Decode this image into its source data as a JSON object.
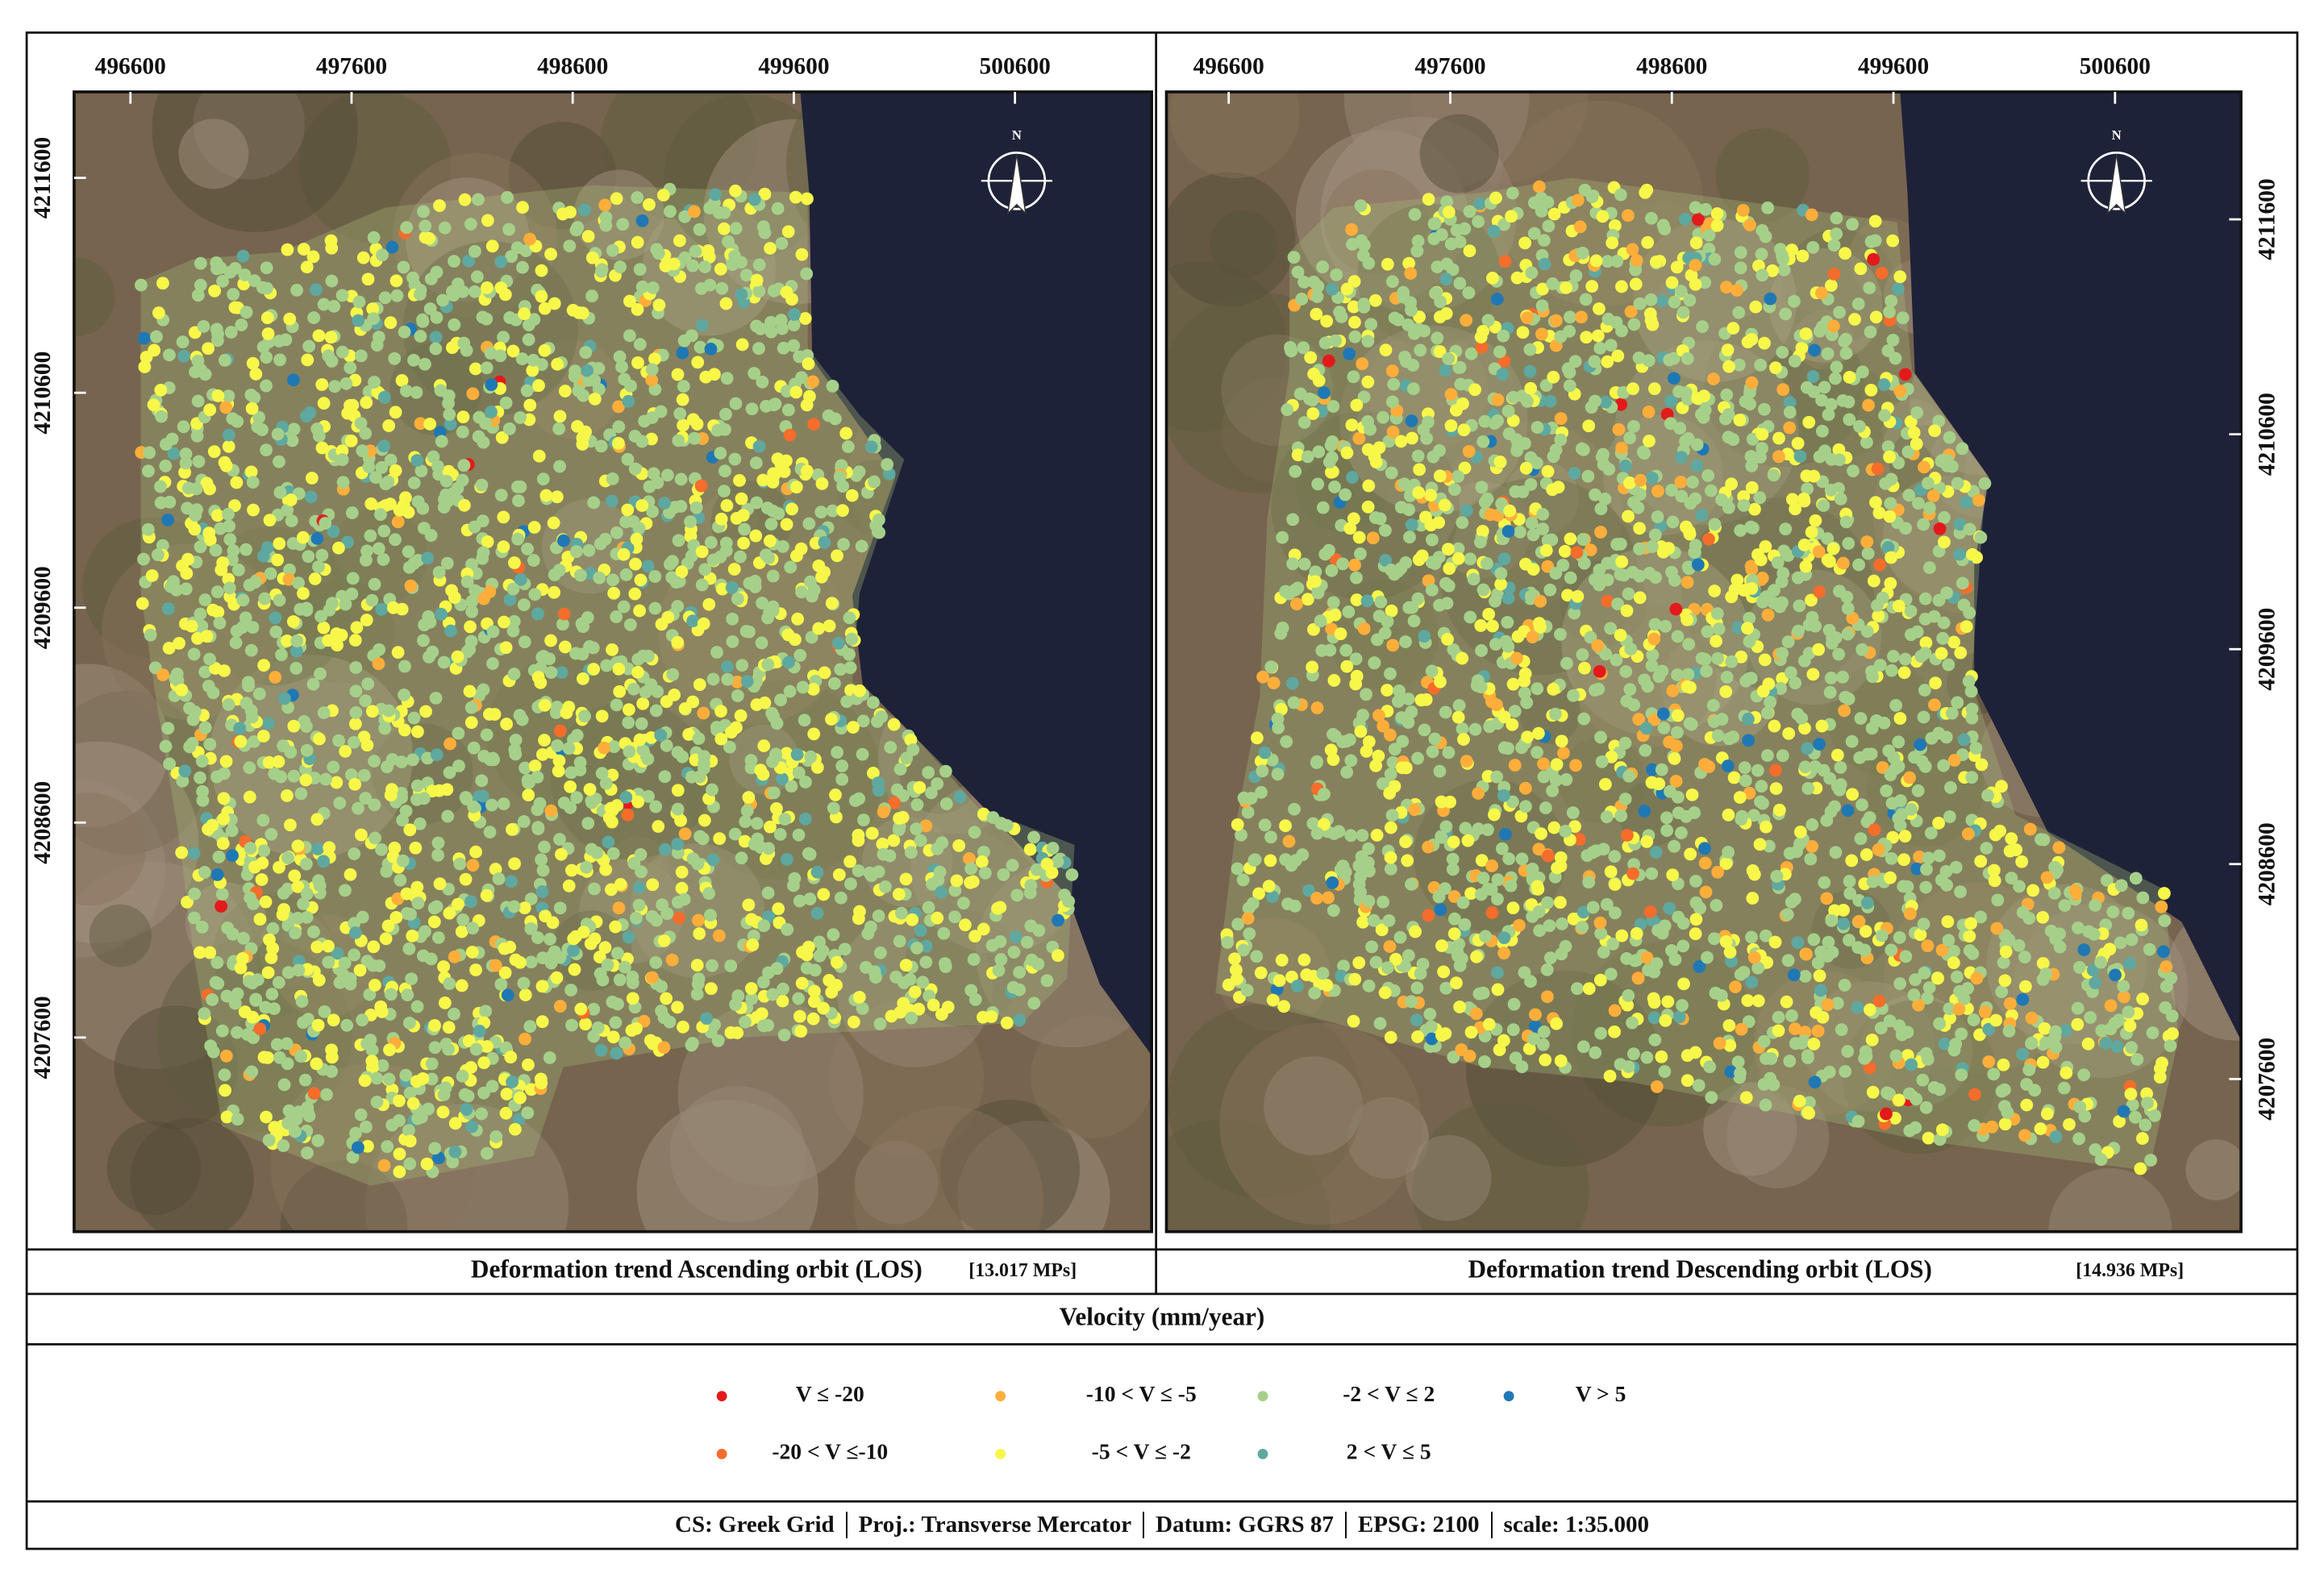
{
  "maps": [
    {
      "title": "Deformation trend Ascending orbit (LOS)",
      "count": "[13.017 MPs]",
      "north": "N",
      "xticks": [
        496600,
        497600,
        498600,
        499600,
        500600
      ],
      "yticks": [
        4211600,
        4210600,
        4209600,
        4208600,
        4207600
      ]
    },
    {
      "title": "Deformation trend Descending orbit (LOS)",
      "count": "[14.936 MPs]",
      "north": "N",
      "xticks": [
        496600,
        497600,
        498600,
        499600,
        500600
      ],
      "yticks": [
        4211600,
        4210600,
        4209600,
        4208600,
        4207600
      ]
    }
  ],
  "legend": {
    "title": "Velocity (mm/year)",
    "items": [
      {
        "label": "V ≤ -20",
        "color": "#e31a1c"
      },
      {
        "label": "-20 < V ≤-10",
        "color": "#f46d2b"
      },
      {
        "label": "-10 < V ≤ -5",
        "color": "#fdae3a"
      },
      {
        "label": "-5 < V ≤ -2",
        "color": "#f7f74a"
      },
      {
        "label": "-2 < V ≤ 2",
        "color": "#a6d08a"
      },
      {
        "label": "2 < V ≤ 5",
        "color": "#5fa8a0"
      },
      {
        "label": "V > 5",
        "color": "#1f78b4"
      }
    ]
  },
  "footer": [
    "CS: Greek Grid",
    "Proj.: Transverse Mercator",
    "Datum: GGRS 87",
    "EPSG: 2100",
    "scale: 1:35.000"
  ]
}
